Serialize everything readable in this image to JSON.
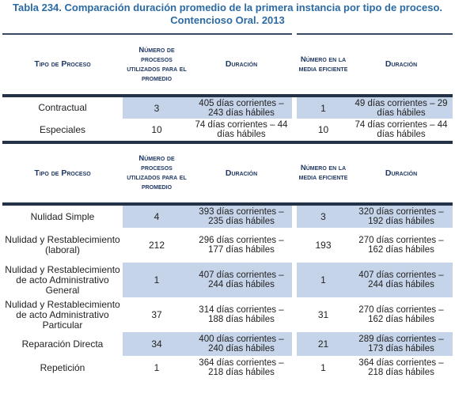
{
  "title": {
    "line1": "Tabla 234. Comparación duración promedio de la primera instancia por tipo de proceso.",
    "line2": "Contencioso Oral. 2013"
  },
  "headers": {
    "tipo": "Tipo de Proceso",
    "numero_utilizados": "Número de procesos utilizados para el promedio",
    "duracion": "Duración",
    "numero_media": "Número en la media eficiente",
    "duracion2": "Duración"
  },
  "section1": [
    {
      "tipo": "Contractual",
      "num": "3",
      "dur": "405 días corrientes – 243 días hábiles",
      "num2": "1",
      "dur2": "49 días corrientes – 29 días hábiles"
    },
    {
      "tipo": "Especiales",
      "num": "10",
      "dur": "74 días corrientes – 44 días hábiles",
      "num2": "10",
      "dur2": "74 días corrientes – 44 días hábiles"
    }
  ],
  "section2": [
    {
      "tipo": "Nulidad Simple",
      "num": "4",
      "dur": "393 días corrientes – 235 días hábiles",
      "num2": "3",
      "dur2": "320 días corrientes – 192 días hábiles"
    },
    {
      "tipo": "Nulidad y Restablecimiento (laboral)",
      "num": "212",
      "dur": "296 días corrientes – 177 días hábiles",
      "num2": "193",
      "dur2": "270 días corrientes – 162 días hábiles"
    },
    {
      "tipo": "Nulidad y Restablecimiento de acto Administrativo General",
      "num": "1",
      "dur": "407 días corrientes – 244 días hábiles",
      "num2": "1",
      "dur2": "407 días corrientes – 244 días hábiles"
    },
    {
      "tipo": "Nulidad y Restablecimiento de acto Administrativo Particular",
      "num": "37",
      "dur": "314 días corrientes – 188 días hábiles",
      "num2": "31",
      "dur2": "270 días corrientes – 162 días hábiles"
    },
    {
      "tipo": "Reparación Directa",
      "num": "34",
      "dur": "400 días corrientes – 240 días hábiles",
      "num2": "21",
      "dur2": "289 días corrientes – 173 días hábiles"
    },
    {
      "tipo": "Repetición",
      "num": "1",
      "dur": "364 días corrientes – 218 días hábiles",
      "num2": "1",
      "dur2": "364 días corrientes – 218 días hábiles"
    }
  ]
}
